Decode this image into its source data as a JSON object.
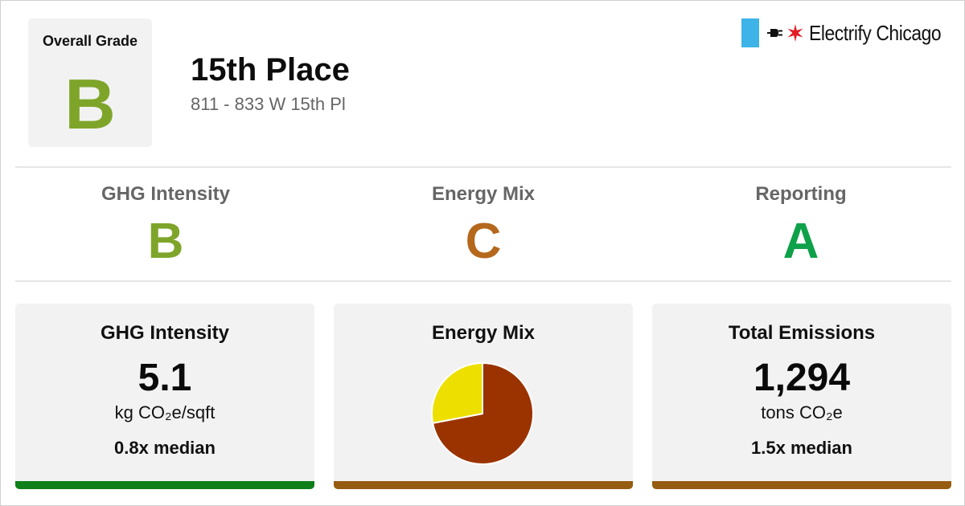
{
  "colors": {
    "grade_B": "#7ea52a",
    "grade_C": "#b5681c",
    "grade_A": "#0fa14a",
    "bar_good": "#0f7f1a",
    "bar_mid": "#965c10",
    "pie_primary": "#9a3300",
    "pie_secondary": "#ede000",
    "flag_blue": "#3db3e8",
    "flag_star": "#e31b23"
  },
  "header": {
    "overall_label": "Overall Grade",
    "overall_grade": "B",
    "building_name": "15th Place",
    "address": "811 - 833 W 15th Pl"
  },
  "logo": {
    "text": "Electrify Chicago",
    "icons": [
      "chicago-flag-bar",
      "plug-icon",
      "star-icon"
    ]
  },
  "grades": [
    {
      "label": "GHG Intensity",
      "grade": "B"
    },
    {
      "label": "Energy Mix",
      "grade": "C"
    },
    {
      "label": "Reporting",
      "grade": "A"
    }
  ],
  "cards": {
    "ghg": {
      "title": "GHG Intensity",
      "value": "5.1",
      "unit": "kg CO₂e/sqft",
      "median": "0.8x median"
    },
    "energy": {
      "title": "Energy Mix"
    },
    "emissions": {
      "title": "Total Emissions",
      "value": "1,294",
      "unit": "tons CO₂e",
      "median": "1.5x median"
    }
  },
  "chart_data": {
    "type": "pie",
    "title": "Energy Mix",
    "slices": [
      {
        "value": 0.72,
        "color": "#9a3300"
      },
      {
        "value": 0.28,
        "color": "#ede000"
      }
    ]
  }
}
